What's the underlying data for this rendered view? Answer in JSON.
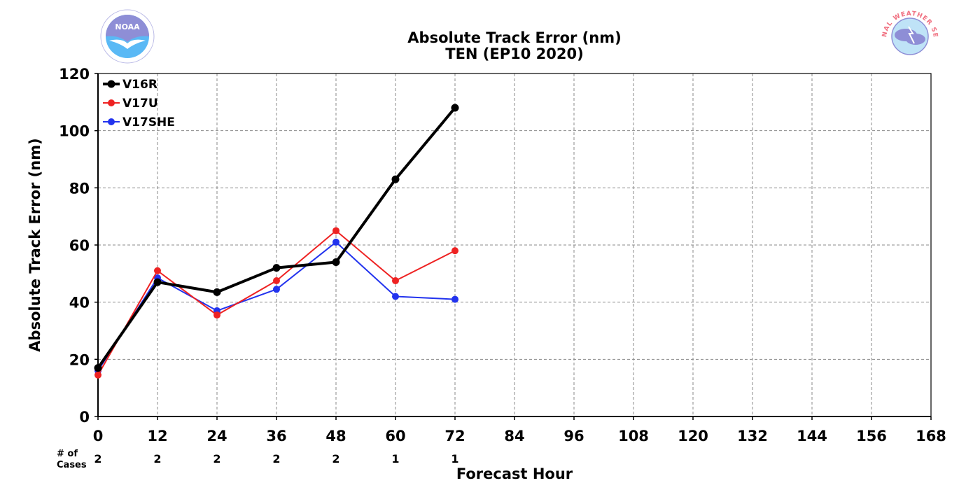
{
  "chart_data": {
    "type": "line",
    "title": "Absolute Track Error (nm)",
    "subtitle": "TEN (EP10 2020)",
    "xlabel": "Forecast Hour",
    "ylabel": "Absolute Track Error (nm)",
    "xlim": [
      0,
      168
    ],
    "ylim": [
      0,
      120
    ],
    "xticks": [
      0,
      12,
      24,
      36,
      48,
      60,
      72,
      84,
      96,
      108,
      120,
      132,
      144,
      156,
      168
    ],
    "yticks": [
      0,
      20,
      40,
      60,
      80,
      100,
      120
    ],
    "grid": true,
    "legend_position": "top-left",
    "x": [
      0,
      12,
      24,
      36,
      48,
      60,
      72
    ],
    "series": [
      {
        "name": "V16R",
        "color": "#000000",
        "values": [
          17.0,
          47.0,
          43.5,
          52.0,
          54.0,
          83.0,
          108.0
        ]
      },
      {
        "name": "V17U",
        "color": "#ee2222",
        "values": [
          14.5,
          51.0,
          35.5,
          47.5,
          65.0,
          47.5,
          58.0
        ]
      },
      {
        "name": "V17SHE",
        "color": "#2233ee",
        "values": [
          16.0,
          48.5,
          37.0,
          44.5,
          61.0,
          42.0,
          41.0
        ]
      }
    ],
    "cases": {
      "label": "# of Cases",
      "label_lines": [
        "# of",
        "Cases"
      ],
      "x": [
        0,
        12,
        24,
        36,
        48,
        60,
        72
      ],
      "values": [
        2,
        2,
        2,
        2,
        2,
        1,
        1
      ]
    }
  },
  "logos": {
    "left": {
      "icon": "noaa-logo-icon",
      "text": "NOAA",
      "ring_color": "#8e8ed6",
      "sea_color": "#5ab9f5"
    },
    "right": {
      "icon": "nws-logo-icon",
      "text": "NATIONAL WEATHER SERVICE",
      "ring_color": "#f07080",
      "cloud_color": "#8e8ed6"
    }
  }
}
